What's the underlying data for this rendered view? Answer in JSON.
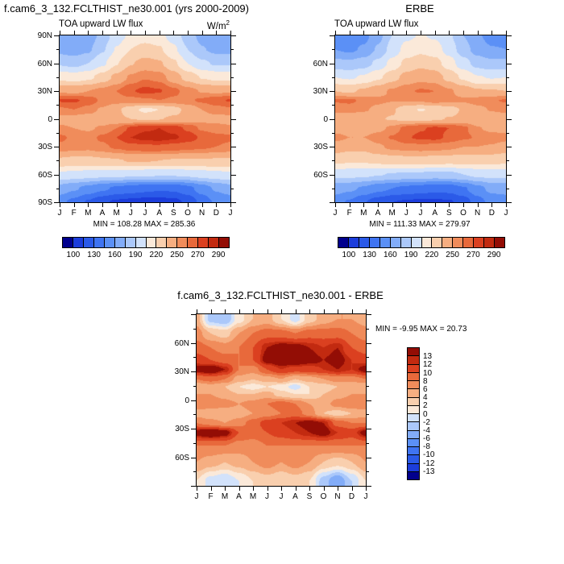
{
  "page": {
    "background": "#ffffff"
  },
  "palette": [
    "#01008d",
    "#1c3ddb",
    "#2b5ae8",
    "#3f74f2",
    "#5b90f6",
    "#82acf8",
    "#abc8fa",
    "#d2e2fb",
    "#fbe9d9",
    "#f9cfae",
    "#f6ae81",
    "#f08c5b",
    "#e8693b",
    "#db4020",
    "#c22a10",
    "#930d05"
  ],
  "months": [
    "J",
    "F",
    "M",
    "A",
    "M",
    "J",
    "J",
    "A",
    "S",
    "O",
    "N",
    "D",
    "J"
  ],
  "panels": {
    "model": {
      "title": "f.cam6_3_132.FCLTHIST_ne30.001 (yrs 2000-2009)",
      "subtitle": "TOA upward LW flux",
      "units_base": "W/m",
      "units_exp": "2",
      "minmax": "MIN = 108.28 MAX = 285.36",
      "lat_labels": [
        "90N",
        "60N",
        "30N",
        "0",
        "30S",
        "60S",
        "90S"
      ],
      "colorbar_labels": [
        "100",
        "130",
        "160",
        "190",
        "220",
        "250",
        "270",
        "290"
      ]
    },
    "obs": {
      "title": "ERBE",
      "subtitle": "TOA upward LW flux",
      "minmax": "MIN = 111.33 MAX = 279.97",
      "lat_labels": [
        "60N",
        "30N",
        "0",
        "30S",
        "60S"
      ],
      "colorbar_labels": [
        "100",
        "130",
        "160",
        "190",
        "220",
        "250",
        "270",
        "290"
      ]
    },
    "diff": {
      "title": "f.cam6_3_132.FCLTHIST_ne30.001 - ERBE",
      "minmax": "MIN =  -9.95 MAX =  20.73",
      "lat_labels": [
        "60N",
        "30N",
        "0",
        "30S",
        "60S"
      ],
      "colorbar_labels": [
        "13",
        "12",
        "10",
        "8",
        "6",
        "4",
        "2",
        "0",
        "-2",
        "-4",
        "-6",
        "-8",
        "-10",
        "-12",
        "-13"
      ]
    }
  },
  "chart_data": [
    {
      "id": "model",
      "type": "heatmap",
      "title": "f.cam6_3_132.FCLTHIST_ne30.001 (yrs 2000-2009)",
      "subtitle": "TOA upward LW flux",
      "units": "W/m2",
      "min": 108.28,
      "max": 285.36,
      "levels": [
        100,
        115,
        130,
        145,
        160,
        175,
        190,
        205,
        220,
        235,
        250,
        260,
        270,
        280,
        290
      ],
      "x": [
        "J",
        "F",
        "M",
        "A",
        "M",
        "J",
        "J",
        "A",
        "S",
        "O",
        "N",
        "D",
        "J"
      ],
      "y": [
        90,
        75,
        60,
        45,
        30,
        20,
        10,
        0,
        -10,
        -20,
        -30,
        -45,
        -60,
        -75,
        -90
      ],
      "values": [
        [
          165,
          162,
          166,
          180,
          198,
          208,
          212,
          209,
          199,
          183,
          170,
          165,
          165
        ],
        [
          170,
          167,
          172,
          188,
          206,
          220,
          226,
          222,
          208,
          190,
          176,
          171,
          170
        ],
        [
          188,
          185,
          190,
          202,
          219,
          234,
          240,
          237,
          223,
          205,
          193,
          188,
          188
        ],
        [
          215,
          212,
          216,
          226,
          239,
          252,
          259,
          256,
          243,
          229,
          219,
          215,
          215
        ],
        [
          248,
          246,
          250,
          254,
          260,
          269,
          273,
          271,
          263,
          255,
          249,
          247,
          248
        ],
        [
          271,
          272,
          266,
          258,
          255,
          256,
          258,
          260,
          258,
          258,
          262,
          267,
          271
        ],
        [
          258,
          260,
          256,
          248,
          238,
          226,
          216,
          220,
          228,
          240,
          250,
          255,
          258
        ],
        [
          245,
          244,
          242,
          240,
          238,
          235,
          233,
          234,
          238,
          242,
          245,
          246,
          245
        ],
        [
          252,
          250,
          248,
          252,
          260,
          272,
          278,
          280,
          276,
          268,
          258,
          254,
          252
        ],
        [
          262,
          258,
          256,
          262,
          270,
          280,
          284,
          285,
          282,
          276,
          268,
          264,
          262
        ],
        [
          258,
          255,
          254,
          258,
          262,
          266,
          268,
          268,
          266,
          264,
          262,
          260,
          258
        ],
        [
          232,
          230,
          230,
          232,
          234,
          236,
          236,
          235,
          234,
          234,
          234,
          233,
          232
        ],
        [
          202,
          200,
          198,
          196,
          195,
          194,
          193,
          192,
          192,
          194,
          197,
          200,
          202
        ],
        [
          168,
          162,
          155,
          148,
          142,
          138,
          135,
          132,
          133,
          140,
          152,
          162,
          168
        ],
        [
          150,
          140,
          128,
          118,
          112,
          110,
          108,
          109,
          110,
          118,
          135,
          148,
          150
        ]
      ]
    },
    {
      "id": "obs",
      "type": "heatmap",
      "title": "ERBE",
      "subtitle": "TOA upward LW flux",
      "units": "W/m2",
      "min": 111.33,
      "max": 279.97,
      "levels": [
        100,
        115,
        130,
        145,
        160,
        175,
        190,
        205,
        220,
        235,
        250,
        260,
        270,
        280,
        290
      ],
      "x": [
        "J",
        "F",
        "M",
        "A",
        "M",
        "J",
        "J",
        "A",
        "S",
        "O",
        "N",
        "D",
        "J"
      ],
      "y": [
        90,
        75,
        60,
        45,
        30,
        20,
        10,
        0,
        -10,
        -20,
        -30,
        -45,
        -60,
        -75,
        -90
      ],
      "values": [
        [
          152,
          150,
          155,
          170,
          190,
          202,
          206,
          203,
          193,
          175,
          162,
          154,
          152
        ],
        [
          160,
          157,
          162,
          177,
          196,
          210,
          216,
          212,
          199,
          182,
          168,
          161,
          160
        ],
        [
          180,
          178,
          183,
          194,
          210,
          224,
          230,
          226,
          212,
          196,
          184,
          179,
          180
        ],
        [
          205,
          203,
          207,
          217,
          229,
          240,
          246,
          243,
          230,
          217,
          206,
          204,
          205
        ],
        [
          235,
          232,
          238,
          245,
          252,
          258,
          261,
          260,
          252,
          244,
          237,
          236,
          235
        ],
        [
          261,
          262,
          258,
          253,
          251,
          251,
          252,
          256,
          253,
          252,
          255,
          259,
          261
        ],
        [
          254,
          255,
          252,
          246,
          237,
          225,
          219,
          223,
          227,
          237,
          246,
          251,
          254
        ],
        [
          239,
          238,
          237,
          236,
          234,
          231,
          230,
          232,
          236,
          238,
          240,
          240,
          239
        ],
        [
          244,
          242,
          241,
          246,
          253,
          264,
          269,
          272,
          270,
          263,
          251,
          246,
          244
        ],
        [
          254,
          250,
          250,
          255,
          261,
          269,
          272,
          273,
          268,
          262,
          259,
          256,
          254
        ],
        [
          244,
          240,
          240,
          248,
          253,
          256,
          257,
          256,
          253,
          250,
          250,
          249,
          244
        ],
        [
          224,
          222,
          222,
          225,
          227,
          228,
          228,
          227,
          226,
          226,
          226,
          225,
          224
        ],
        [
          196,
          195,
          194,
          191,
          189,
          187,
          187,
          185,
          186,
          190,
          194,
          196,
          196
        ],
        [
          166,
          163,
          158,
          150,
          145,
          141,
          138,
          135,
          136,
          143,
          155,
          164,
          166
        ],
        [
          152,
          143,
          131,
          121,
          115,
          113,
          111,
          112,
          113,
          121,
          138,
          151,
          152
        ]
      ]
    },
    {
      "id": "diff",
      "type": "heatmap",
      "title": "f.cam6_3_132.FCLTHIST_ne30.001 - ERBE",
      "units": "W/m2",
      "min": -9.95,
      "max": 20.73,
      "levels": [
        -13,
        -12,
        -10,
        -8,
        -6,
        -4,
        -2,
        0,
        2,
        4,
        6,
        8,
        10,
        12,
        13
      ],
      "x": [
        "J",
        "F",
        "M",
        "A",
        "M",
        "J",
        "J",
        "A",
        "S",
        "O",
        "N",
        "D",
        "J"
      ],
      "y": [
        85,
        70,
        55,
        42,
        32,
        22,
        14,
        6,
        -4,
        -14,
        -24,
        -34,
        -48,
        -65,
        -85
      ],
      "values": [
        [
          5,
          -3,
          -4,
          1,
          4,
          5,
          2,
          -1,
          3,
          5,
          6,
          6,
          5
        ],
        [
          7,
          4,
          3,
          6,
          8,
          9,
          9,
          8,
          9,
          9,
          9,
          8,
          7
        ],
        [
          9,
          8,
          7,
          8,
          10,
          13,
          14,
          14,
          13,
          12,
          13,
          10,
          9
        ],
        [
          11,
          10,
          9,
          8,
          10,
          14,
          15,
          15,
          14,
          13,
          14,
          12,
          11
        ],
        [
          14,
          15,
          13,
          8,
          7,
          10,
          12,
          11,
          11,
          12,
          13,
          12,
          14
        ],
        [
          8,
          9,
          8,
          5,
          4,
          5,
          6,
          4,
          5,
          6,
          7,
          7,
          8
        ],
        [
          4,
          5,
          4,
          2,
          1,
          2,
          1,
          -1,
          2,
          3,
          4,
          4,
          4
        ],
        [
          6,
          6,
          5,
          4,
          4,
          5,
          3,
          2,
          2,
          4,
          5,
          6,
          6
        ],
        [
          8,
          8,
          7,
          6,
          7,
          8,
          9,
          8,
          6,
          5,
          7,
          8,
          8
        ],
        [
          5,
          4,
          4,
          5,
          6,
          7,
          8,
          9,
          7,
          4,
          3,
          4,
          5
        ],
        [
          8,
          7,
          6,
          7,
          9,
          11,
          12,
          13,
          14,
          13,
          9,
          8,
          8
        ],
        [
          14,
          15,
          14,
          10,
          9,
          10,
          11,
          12,
          13,
          14,
          12,
          11,
          14
        ],
        [
          8,
          8,
          8,
          7,
          7,
          8,
          8,
          8,
          8,
          8,
          8,
          8,
          8
        ],
        [
          6,
          5,
          4,
          5,
          6,
          7,
          6,
          7,
          6,
          4,
          3,
          4,
          6
        ],
        [
          2,
          -1,
          -2,
          0,
          2,
          3,
          2,
          3,
          2,
          -3,
          -6,
          -2,
          2
        ]
      ]
    }
  ]
}
